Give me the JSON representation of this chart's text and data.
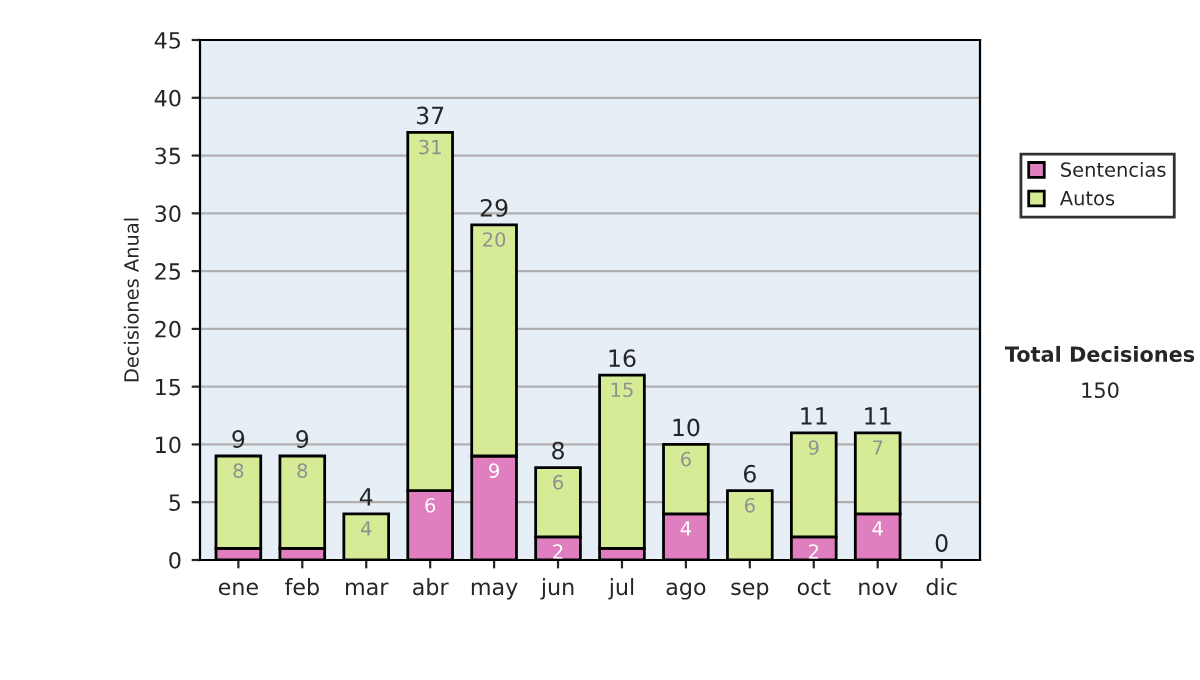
{
  "chart_data": {
    "type": "bar",
    "stacked": true,
    "ylabel": "Decisiones Anual",
    "categories": [
      "ene",
      "feb",
      "mar",
      "abr",
      "may",
      "jun",
      "jul",
      "ago",
      "sep",
      "oct",
      "nov",
      "dic"
    ],
    "series": [
      {
        "name": "Sentencias",
        "color": "#df7fbf",
        "values": [
          1,
          1,
          0,
          6,
          9,
          2,
          1,
          4,
          0,
          2,
          4,
          0
        ],
        "value_labels": [
          null,
          null,
          null,
          "6",
          "9",
          "2",
          null,
          "4",
          null,
          "2",
          "4",
          null
        ]
      },
      {
        "name": "Autos",
        "color": "#d6eb96",
        "values": [
          8,
          8,
          4,
          31,
          20,
          6,
          15,
          6,
          6,
          9,
          7,
          0
        ],
        "value_labels": [
          "8",
          "8",
          "4",
          "31",
          "20",
          "6",
          "15",
          "6",
          "6",
          "9",
          "7",
          null
        ]
      }
    ],
    "totals": [
      "9",
      "9",
      "4",
      "37",
      "29",
      "8",
      "16",
      "10",
      "6",
      "11",
      "11",
      "0"
    ],
    "ylim": [
      0,
      45
    ],
    "yticks": [
      0,
      5,
      10,
      15,
      20,
      25,
      30,
      35,
      40,
      45
    ],
    "grid": "y",
    "legend": "right",
    "annotations": [
      "Total Decisiones",
      "150"
    ]
  }
}
